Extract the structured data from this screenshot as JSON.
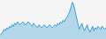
{
  "chart_data": {
    "type": "area",
    "values": [
      20,
      22,
      24,
      28,
      26,
      30,
      28,
      32,
      30,
      34,
      32,
      36,
      34,
      38,
      36,
      34,
      36,
      38,
      36,
      34,
      36,
      38,
      36,
      34,
      32,
      36,
      34,
      32,
      30,
      34,
      32,
      30,
      32,
      34,
      32,
      30,
      32,
      34,
      32,
      30,
      32,
      34,
      32,
      36,
      34,
      38,
      36,
      40,
      38,
      42,
      44,
      48,
      52,
      58,
      64,
      60,
      52,
      44,
      36,
      28,
      32,
      36,
      30,
      26,
      30,
      34,
      28,
      24,
      28,
      32,
      26,
      30,
      28,
      32,
      30,
      28,
      32,
      30,
      28,
      30
    ],
    "color": "#3a9fd4",
    "ylim": [
      15,
      67
    ],
    "tick_labels": false,
    "grid": false
  }
}
